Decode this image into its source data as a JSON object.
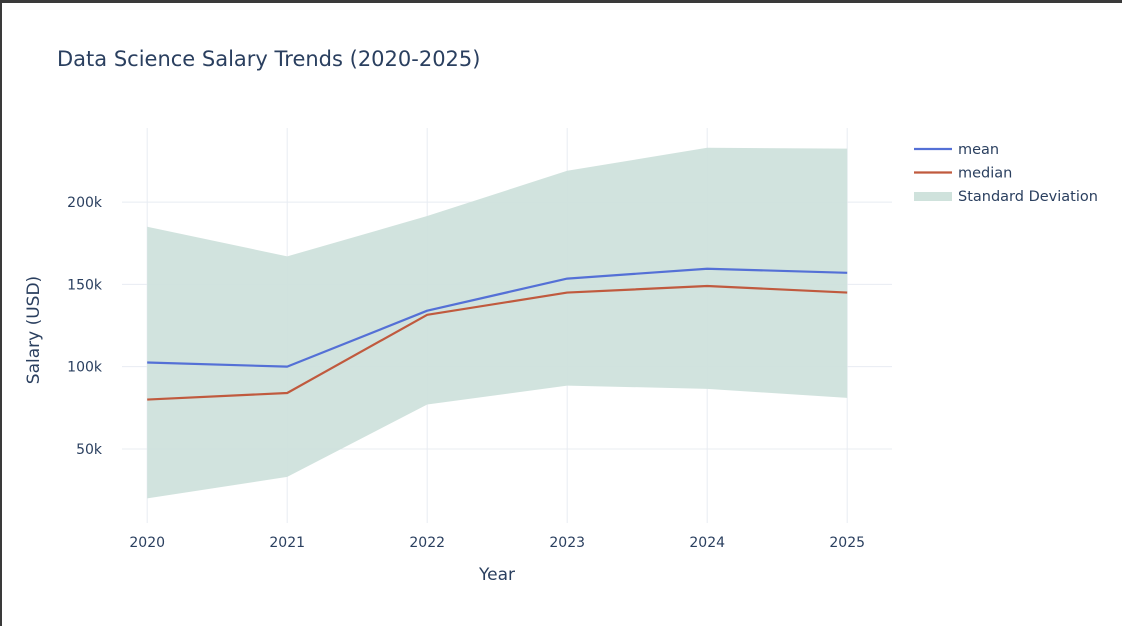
{
  "chart_data": {
    "type": "line",
    "title": "Data Science Salary Trends (2020-2025)",
    "xlabel": "Year",
    "ylabel": "Salary (USD)",
    "x": [
      2020,
      2021,
      2022,
      2023,
      2024,
      2025
    ],
    "x_tick_labels": [
      "2020",
      "2021",
      "2022",
      "2023",
      "2024",
      "2025"
    ],
    "ylim": [
      5000,
      245000
    ],
    "y_ticks": [
      50000,
      100000,
      150000,
      200000
    ],
    "y_tick_labels": [
      "50k",
      "100k",
      "150k",
      "200k"
    ],
    "grid": true,
    "legend_position": "top-right",
    "series": [
      {
        "name": "mean",
        "color": "#5470d6",
        "values": [
          102500,
          100000,
          134000,
          153500,
          159500,
          157000
        ]
      },
      {
        "name": "median",
        "color": "#c05a3e",
        "values": [
          80000,
          84000,
          131500,
          145000,
          149000,
          145000
        ]
      }
    ],
    "band": {
      "name": "Standard Deviation",
      "color": "#cfe2dc",
      "upper": [
        185000,
        167000,
        191500,
        219000,
        233000,
        232500
      ],
      "lower": [
        20000,
        33000,
        77000,
        88500,
        86500,
        81000
      ]
    }
  }
}
